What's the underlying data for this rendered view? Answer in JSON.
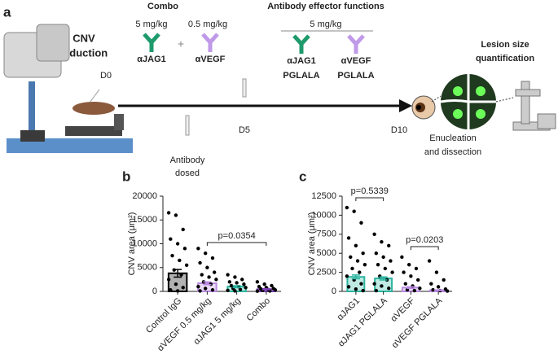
{
  "schematic": {
    "panel_label": "a",
    "induction": [
      "CNV",
      "induction"
    ],
    "day0": "D0",
    "day5": "D5",
    "day10": "D10",
    "combo": {
      "title": "Combo",
      "dose1": "5 mg/kg",
      "plus": "+",
      "dose2": "0.5 mg/kg",
      "antibody1": "αJAG1",
      "antibody2": "αVEGF"
    },
    "effector": {
      "title": "Antibody effector functions",
      "dose": "5 mg/kg",
      "antibody1": [
        "αJAG1",
        "PGLALA"
      ],
      "antibody2": [
        "αVEGF",
        "PGLALA"
      ]
    },
    "dosed": [
      "Antibody",
      "dosed"
    ],
    "quantification": [
      "Lesion size",
      "quantification"
    ],
    "dissection": [
      "Enucleation",
      "and dissection"
    ]
  },
  "chart_data": [
    {
      "type": "bar",
      "panel_label": "b",
      "ylabel": "CNV area (μm²)",
      "categories": [
        "Control IgG",
        "αVEGF 0.5 mg/kg",
        "αJAG1 5 mg/kg",
        "Combo"
      ],
      "values": [
        3800,
        1700,
        1000,
        450
      ],
      "errors": [
        800,
        300,
        200,
        100
      ],
      "colors": [
        "#000000",
        "#b98ae0",
        "#2bb5a0",
        "#7a3fb0"
      ],
      "points": [
        [
          16500,
          16000,
          13000,
          11000,
          10000,
          9000,
          7500,
          6500,
          5500,
          4500,
          3500,
          2500,
          1500,
          800,
          300,
          100
        ],
        [
          9000,
          8000,
          7000,
          6000,
          5000,
          4000,
          3500,
          3000,
          2500,
          2000,
          1500,
          1000,
          600,
          300,
          100
        ],
        [
          3500,
          3000,
          2500,
          2000,
          1800,
          1500,
          1200,
          1000,
          800,
          600,
          400,
          200,
          100
        ],
        [
          2000,
          1500,
          1200,
          1000,
          800,
          600,
          500,
          400,
          300,
          200,
          100,
          50
        ]
      ],
      "ylim": [
        0,
        20000
      ],
      "yticks": [
        0,
        5000,
        10000,
        15000,
        20000
      ],
      "annotations": [
        {
          "text": "p=0.0354",
          "from": 1,
          "to": 3
        }
      ]
    },
    {
      "type": "bar",
      "panel_label": "c",
      "ylabel": "CNV area (μm²)",
      "categories": [
        "αJAG1",
        "αJAG1 PGLALA",
        "αVEGF",
        "αVEGF PGLALA"
      ],
      "values": [
        1900,
        1700,
        500,
        150
      ],
      "errors": [
        250,
        200,
        100,
        50
      ],
      "colors": [
        "#2bb5a0",
        "#2bb5a0",
        "#b98ae0",
        "#b98ae0"
      ],
      "points": [
        [
          11000,
          10500,
          9000,
          7000,
          6000,
          5000,
          4500,
          4000,
          3500,
          3000,
          2500,
          2000,
          1500,
          1000,
          600,
          300,
          100
        ],
        [
          7500,
          6500,
          6000,
          5000,
          4500,
          4000,
          3500,
          3000,
          2500,
          2000,
          1500,
          1000,
          700,
          400,
          100
        ],
        [
          4500,
          3500,
          3000,
          2500,
          2000,
          1500,
          1000,
          700,
          400,
          200,
          100
        ],
        [
          4000,
          2500,
          1500,
          1000,
          600,
          300,
          200,
          100,
          50
        ]
      ],
      "ylim": [
        0,
        12500
      ],
      "yticks": [
        0,
        2500,
        5000,
        7500,
        10000,
        12500
      ],
      "annotations": [
        {
          "text": "p=0.5339",
          "from": 0,
          "to": 1
        },
        {
          "text": "p=0.0203",
          "from": 2,
          "to": 3
        }
      ]
    }
  ]
}
